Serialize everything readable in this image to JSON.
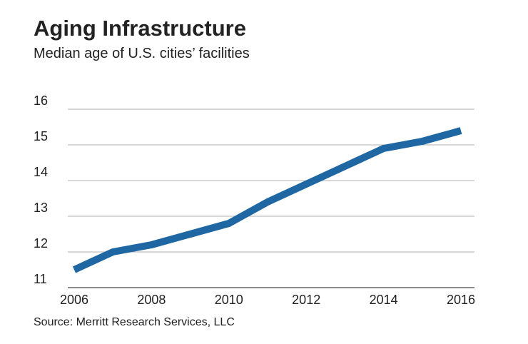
{
  "chart_data": {
    "type": "line",
    "title": "Aging Infrastructure",
    "subtitle": "Median age of U.S. cities’ facilities",
    "source": "Source: Merritt Research Services, LLC",
    "x": [
      2006,
      2007,
      2008,
      2009,
      2010,
      2011,
      2012,
      2013,
      2014,
      2015,
      2016
    ],
    "series": [
      {
        "name": "Median age",
        "color": "#1f67a3",
        "values": [
          11.5,
          12.0,
          12.2,
          12.5,
          12.8,
          13.4,
          13.9,
          14.4,
          14.9,
          15.1,
          15.4
        ]
      }
    ],
    "xlim": [
      2006,
      2016
    ],
    "xticks": [
      2006,
      2008,
      2010,
      2012,
      2014,
      2016
    ],
    "ylim": [
      11,
      16
    ],
    "yticks": [
      11,
      12,
      13,
      14,
      15,
      16
    ],
    "grid": true
  }
}
